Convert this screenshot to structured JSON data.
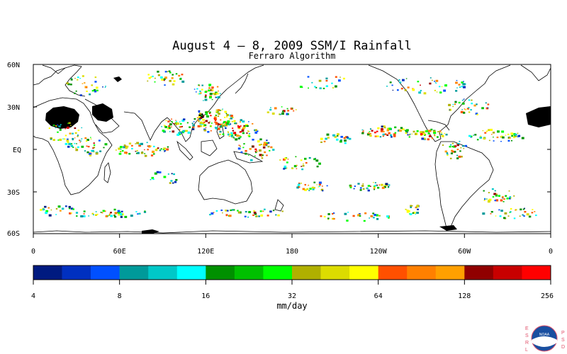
{
  "title": "August 4 – 8, 2009 SSM/I Rainfall",
  "subtitle": "Ferraro Algorithm",
  "map": {
    "lat_labels": [
      "60N",
      "30N",
      "EQ",
      "30S",
      "60S"
    ],
    "lon_labels": [
      "0",
      "60E",
      "120E",
      "180",
      "120W",
      "60W",
      "0"
    ],
    "lat_range": [
      -60,
      60
    ],
    "lon_range": [
      0,
      360
    ],
    "land_color": "#ffffff",
    "missing_color": "#000000"
  },
  "colorbar": {
    "unit": "mm/day",
    "tick_labels": [
      "4",
      "8",
      "16",
      "32",
      "64",
      "128",
      "256"
    ],
    "colors": [
      "#001a80",
      "#0030c0",
      "#0050ff",
      "#009a9a",
      "#00c8c8",
      "#00ffff",
      "#009000",
      "#00c000",
      "#00ff00",
      "#b0b000",
      "#dcdc00",
      "#ffff00",
      "#ff5000",
      "#ff8000",
      "#ffa000",
      "#900000",
      "#c80000",
      "#ff0000"
    ]
  },
  "logo": {
    "left_letters": [
      "E",
      "S",
      "R",
      "L"
    ],
    "right_letters": [
      "P",
      "S",
      "D"
    ],
    "center_text": "NOAA"
  }
}
